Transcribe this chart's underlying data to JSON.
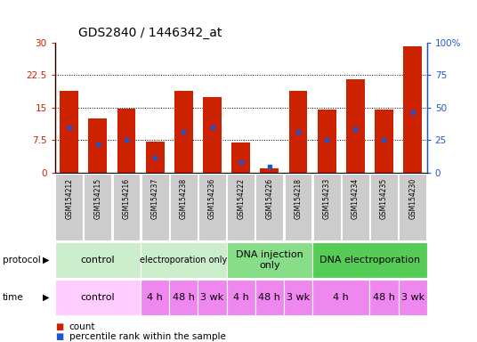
{
  "title": "GDS2840 / 1446342_at",
  "samples": [
    "GSM154212",
    "GSM154215",
    "GSM154216",
    "GSM154237",
    "GSM154238",
    "GSM154236",
    "GSM154222",
    "GSM154226",
    "GSM154218",
    "GSM154233",
    "GSM154234",
    "GSM154235",
    "GSM154230"
  ],
  "count_values": [
    19.0,
    12.5,
    14.7,
    7.1,
    19.0,
    17.5,
    7.0,
    1.0,
    19.0,
    14.5,
    21.5,
    14.5,
    29.2
  ],
  "percentile_values": [
    10.5,
    6.5,
    7.5,
    3.5,
    9.5,
    10.5,
    2.5,
    1.5,
    9.5,
    7.5,
    10.0,
    7.5,
    14.0
  ],
  "ylim_left": [
    0,
    30
  ],
  "ylim_right": [
    0,
    100
  ],
  "yticks_left": [
    0,
    7.5,
    15,
    22.5,
    30
  ],
  "yticks_right": [
    0,
    25,
    50,
    75,
    100
  ],
  "ytick_labels_left": [
    "0",
    "7.5",
    "15",
    "22.5",
    "30"
  ],
  "ytick_labels_right": [
    "0",
    "25",
    "50",
    "75",
    "100%"
  ],
  "bar_color": "#cc2200",
  "dot_color": "#2255cc",
  "bg_color": "#ffffff",
  "xlabel_color": "#cc2200",
  "ylabel_right_color": "#2255cc",
  "tick_label_bg": "#cccccc",
  "protocol_groups": [
    {
      "label": "control",
      "start": 0,
      "end": 2,
      "color": "#cceecc"
    },
    {
      "label": "electroporation only",
      "start": 3,
      "end": 5,
      "color": "#cceecc",
      "fontsize": 7
    },
    {
      "label": "DNA injection\nonly",
      "start": 6,
      "end": 8,
      "color": "#88dd88"
    },
    {
      "label": "DNA electroporation",
      "start": 9,
      "end": 12,
      "color": "#55cc55"
    }
  ],
  "time_groups": [
    {
      "label": "control",
      "start": 0,
      "end": 2,
      "color": "#ffccff"
    },
    {
      "label": "4 h",
      "start": 3,
      "end": 3,
      "color": "#ee88ee"
    },
    {
      "label": "48 h",
      "start": 4,
      "end": 4,
      "color": "#ee88ee"
    },
    {
      "label": "3 wk",
      "start": 5,
      "end": 5,
      "color": "#ee88ee"
    },
    {
      "label": "4 h",
      "start": 6,
      "end": 6,
      "color": "#ee88ee"
    },
    {
      "label": "48 h",
      "start": 7,
      "end": 7,
      "color": "#ee88ee"
    },
    {
      "label": "3 wk",
      "start": 8,
      "end": 8,
      "color": "#ee88ee"
    },
    {
      "label": "4 h",
      "start": 9,
      "end": 10,
      "color": "#ee88ee"
    },
    {
      "label": "48 h",
      "start": 11,
      "end": 11,
      "color": "#ee88ee"
    },
    {
      "label": "3 wk",
      "start": 12,
      "end": 12,
      "color": "#ee88ee"
    }
  ]
}
